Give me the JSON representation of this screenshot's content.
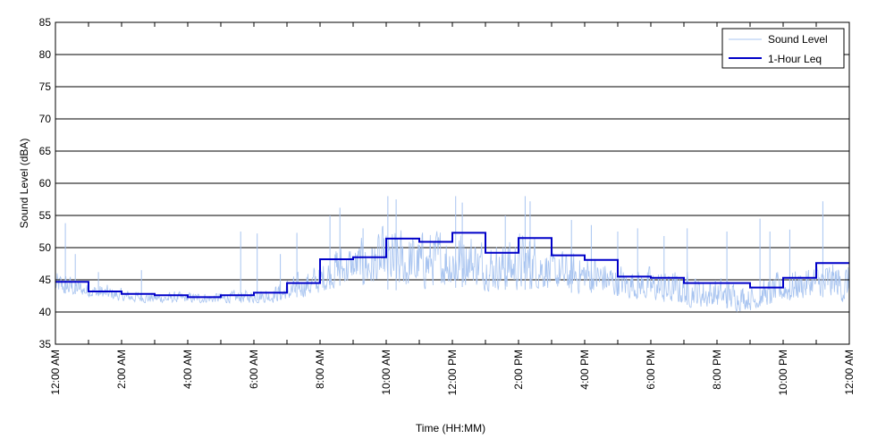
{
  "chart_data": {
    "type": "line",
    "xlabel": "Time (HH:MM)",
    "ylabel": "Sound Level (dBA)",
    "ylim": [
      35,
      85
    ],
    "yticks": [
      35,
      40,
      45,
      50,
      55,
      60,
      65,
      70,
      75,
      80,
      85
    ],
    "xlim_hours": [
      0,
      24
    ],
    "xtick_hours": [
      0,
      2,
      4,
      6,
      8,
      10,
      12,
      14,
      16,
      18,
      20,
      22,
      24
    ],
    "xtick_labels": [
      "12:00 AM",
      "2:00 AM",
      "4:00 AM",
      "6:00 AM",
      "8:00 AM",
      "10:00 AM",
      "12:00 PM",
      "2:00 PM",
      "4:00 PM",
      "6:00 PM",
      "8:00 PM",
      "10:00 PM",
      "12:00 AM"
    ],
    "grid": "horizontal",
    "legend_position": "top-right",
    "colors": {
      "sound_level": "#a8c4f0",
      "leq": "#0000c8",
      "grid": "#000000"
    },
    "series": [
      {
        "name": "Sound Level",
        "style": "thin-line",
        "envelope_hours": [
          0,
          0.5,
          1,
          1.5,
          2,
          3,
          4,
          5,
          6,
          6.5,
          7,
          7.5,
          8,
          8.5,
          9,
          9.5,
          10,
          10.5,
          11,
          11.5,
          12,
          12.5,
          13,
          13.5,
          14,
          14.5,
          15,
          15.5,
          16,
          16.5,
          17,
          17.5,
          18,
          18.5,
          19,
          19.5,
          20,
          20.5,
          21,
          21.5,
          22,
          22.5,
          23,
          23.5,
          24
        ],
        "envelope_low": [
          42.5,
          42.3,
          42.2,
          41.8,
          41.5,
          41.3,
          41.3,
          41.3,
          41.3,
          41.3,
          41.5,
          42,
          42.5,
          43.5,
          44,
          43.5,
          43,
          42.8,
          43,
          43.5,
          43.2,
          43.5,
          43,
          43,
          42.8,
          43.2,
          43,
          42.5,
          42.5,
          42.5,
          42,
          41.8,
          41.5,
          41,
          40.7,
          40.3,
          40.2,
          40,
          40,
          40.7,
          41.2,
          41.5,
          42,
          41.5,
          40.8
        ],
        "envelope_high": [
          47,
          46.5,
          45,
          44.8,
          44,
          43.5,
          43.5,
          43.5,
          44,
          44.5,
          46,
          47,
          49,
          52,
          52,
          53.5,
          55,
          55,
          54.5,
          55,
          55.5,
          55,
          53,
          52.5,
          54.5,
          54.5,
          51,
          51,
          51,
          50,
          48.5,
          48,
          48,
          47.5,
          47.5,
          47,
          46.5,
          46,
          45,
          46,
          47.5,
          48,
          49,
          49.5,
          49
        ],
        "spikes": [
          {
            "hour": 0.3,
            "value": 53.8
          },
          {
            "hour": 0.6,
            "value": 49
          },
          {
            "hour": 1.3,
            "value": 46.2
          },
          {
            "hour": 2.6,
            "value": 46.5
          },
          {
            "hour": 5.6,
            "value": 52.5
          },
          {
            "hour": 6.1,
            "value": 52.2
          },
          {
            "hour": 6.8,
            "value": 49
          },
          {
            "hour": 7.3,
            "value": 52.3
          },
          {
            "hour": 8.3,
            "value": 55
          },
          {
            "hour": 8.6,
            "value": 56.2
          },
          {
            "hour": 9.3,
            "value": 53
          },
          {
            "hour": 10.05,
            "value": 58
          },
          {
            "hour": 10.3,
            "value": 57.5
          },
          {
            "hour": 12.1,
            "value": 58
          },
          {
            "hour": 12.3,
            "value": 57
          },
          {
            "hour": 13.6,
            "value": 55
          },
          {
            "hour": 14.2,
            "value": 58
          },
          {
            "hour": 14.35,
            "value": 57.2
          },
          {
            "hour": 15.6,
            "value": 54.3
          },
          {
            "hour": 16.2,
            "value": 53.5
          },
          {
            "hour": 17.0,
            "value": 52.5
          },
          {
            "hour": 17.6,
            "value": 53
          },
          {
            "hour": 18.4,
            "value": 51.8
          },
          {
            "hour": 19.1,
            "value": 53
          },
          {
            "hour": 20.3,
            "value": 52.5
          },
          {
            "hour": 21.3,
            "value": 54.5
          },
          {
            "hour": 21.6,
            "value": 52.5
          },
          {
            "hour": 22.2,
            "value": 52.8
          },
          {
            "hour": 23.2,
            "value": 57.2
          }
        ]
      },
      {
        "name": "1-Hour Leq",
        "style": "step",
        "hour_start": [
          0,
          1,
          2,
          3,
          4,
          5,
          6,
          7,
          8,
          9,
          10,
          11,
          12,
          13,
          14,
          15,
          16,
          17,
          18,
          19,
          20,
          21,
          22,
          23
        ],
        "values": [
          44.7,
          43.2,
          42.8,
          42.6,
          42.3,
          42.6,
          43.0,
          44.5,
          48.2,
          48.5,
          51.4,
          50.9,
          52.3,
          49.2,
          51.5,
          48.8,
          48.1,
          45.5,
          45.3,
          44.5,
          44.5,
          43.8,
          45.3,
          47.6
        ]
      }
    ]
  }
}
